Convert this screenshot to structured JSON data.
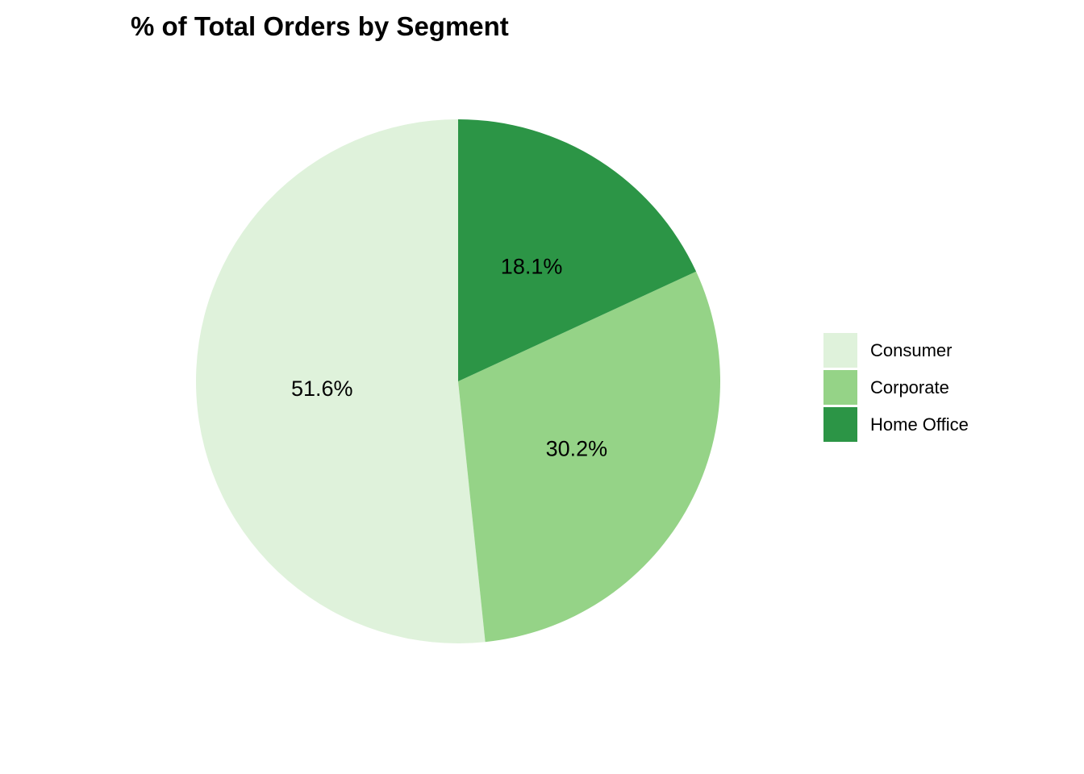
{
  "chart_data": {
    "type": "pie",
    "title": "% of Total Orders by Segment",
    "categories": [
      "Consumer",
      "Corporate",
      "Home Office"
    ],
    "values": [
      51.6,
      30.2,
      18.1
    ],
    "labels": [
      "51.6%",
      "30.2%",
      "18.1%"
    ],
    "colors": [
      "#dff2db",
      "#95d387",
      "#2c9546"
    ],
    "start_angle_deg": 0,
    "direction": "counterclockwise",
    "legend": {
      "position": "right",
      "entries": [
        "Consumer",
        "Corporate",
        "Home Office"
      ]
    }
  }
}
